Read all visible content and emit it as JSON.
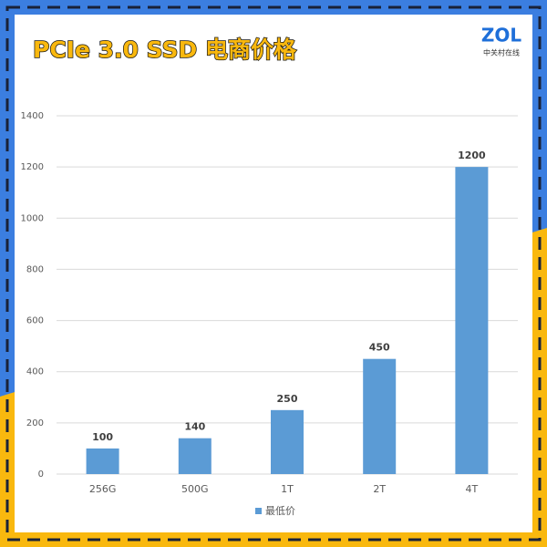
{
  "chart_data": {
    "type": "bar",
    "title": "PCIe 3.0 SSD 电商价格",
    "annotations": [
      "ZOL",
      "中关村在线"
    ],
    "categories": [
      "256G",
      "500G",
      "1T",
      "2T",
      "4T"
    ],
    "series": [
      {
        "name": "最低价",
        "color": "#5b9bd5",
        "values": [
          100,
          140,
          250,
          450,
          1200
        ]
      }
    ],
    "ylim": [
      0,
      1400
    ],
    "yticks": [
      0,
      200,
      400,
      600,
      800,
      1000,
      1200,
      1400
    ],
    "grid": true,
    "legend": "bottom"
  }
}
